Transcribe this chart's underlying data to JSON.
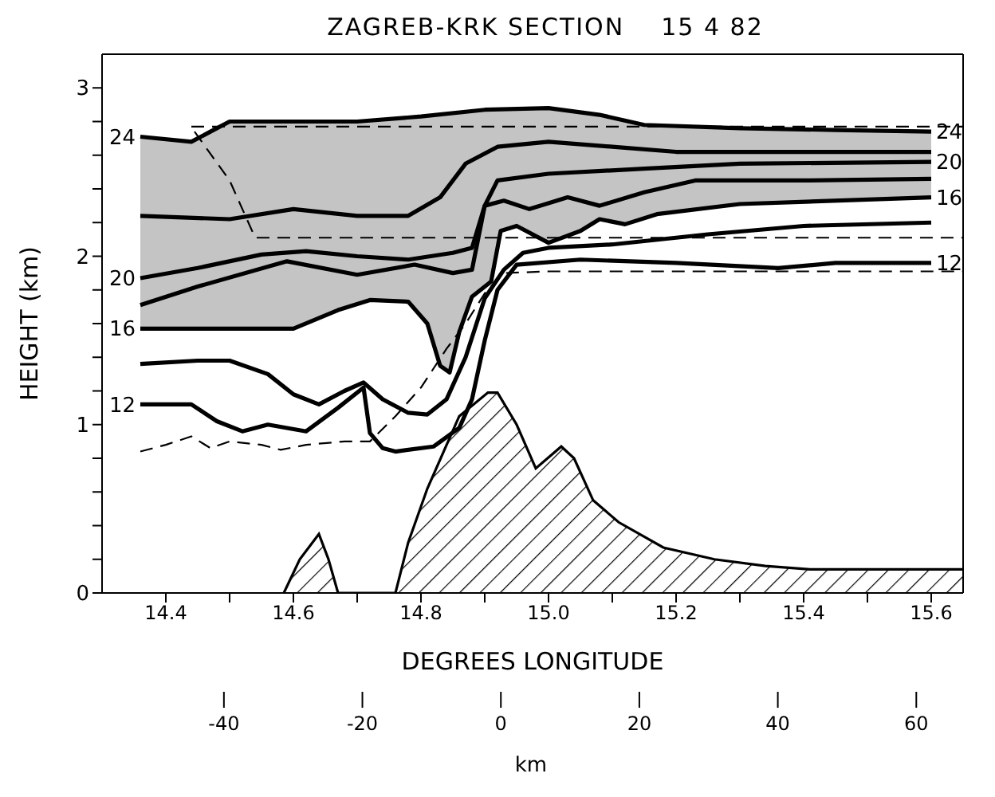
{
  "chart_data": {
    "type": "line",
    "title": "ZAGREB-KRK SECTION    15 4 82",
    "xlabel": "DEGREES LONGITUDE",
    "ylabel": "HEIGHT (km)",
    "x2label": "km",
    "xlim": [
      14.3,
      15.65
    ],
    "ylim": [
      0,
      3.2
    ],
    "xticks": [
      14.4,
      {
        "value": 14.5,
        "label": null
      },
      14.6,
      {
        "value": 14.7,
        "label": null
      },
      14.8,
      {
        "value": 14.9,
        "label": null
      },
      "15.0",
      {
        "value": 15.1,
        "label": null
      },
      15.2,
      {
        "value": 15.3,
        "label": null
      },
      15.4,
      {
        "value": 15.5,
        "label": null
      },
      15.6
    ],
    "yticks": [
      0,
      {
        "value": 0.2,
        "label": null
      },
      {
        "value": 0.4,
        "label": null
      },
      {
        "value": 0.6,
        "label": null
      },
      {
        "value": 0.8,
        "label": null
      },
      1,
      {
        "value": 1.2,
        "label": null
      },
      {
        "value": 1.4,
        "label": null
      },
      {
        "value": 1.6,
        "label": null
      },
      {
        "value": 1.8,
        "label": null
      },
      2,
      {
        "value": 2.2,
        "label": null
      },
      {
        "value": 2.4,
        "label": null
      },
      {
        "value": 2.6,
        "label": null
      },
      {
        "value": 2.8,
        "label": null
      },
      3
    ],
    "x2lim": [
      -57.6,
      66.3
    ],
    "x2ticks": [
      -40,
      -20,
      0,
      20,
      40,
      60
    ],
    "marker": "none",
    "line_style": "solid",
    "legend": "left",
    "series": [
      {
        "type": "area",
        "color": "#000000",
        "x": [
          14.585,
          14.61,
          14.64,
          14.655,
          14.67,
          14.76,
          14.78,
          14.81,
          14.86,
          14.905,
          14.92,
          14.95,
          14.98,
          15.02,
          15.04,
          15.07,
          15.11,
          15.18,
          15.26,
          15.34,
          15.41,
          15.65
        ],
        "values": [
          0,
          0.2,
          0.35,
          0.2,
          0,
          0,
          0.3,
          0.62,
          1.05,
          1.19,
          1.19,
          1.0,
          0.74,
          0.87,
          0.8,
          0.55,
          0.42,
          0.27,
          0.2,
          0.16,
          0.14,
          0.14
        ]
      },
      {
        "name": "24",
        "color": "#000000",
        "x": [
          14.36,
          14.44,
          14.47,
          14.5,
          14.6,
          14.7,
          14.8,
          14.9,
          15.0,
          15.08,
          15.15,
          15.3,
          15.45,
          15.6
        ],
        "values": [
          2.71,
          2.68,
          2.74,
          2.8,
          2.8,
          2.8,
          2.83,
          2.87,
          2.88,
          2.84,
          2.78,
          2.76,
          2.75,
          2.74
        ]
      },
      {
        "color": "#000000",
        "x": [
          14.36,
          14.5,
          14.6,
          14.7,
          14.78,
          14.83,
          14.87,
          14.92,
          15.0,
          15.1,
          15.2,
          15.4,
          15.6
        ],
        "values": [
          2.24,
          2.22,
          2.28,
          2.24,
          2.24,
          2.35,
          2.55,
          2.65,
          2.68,
          2.65,
          2.62,
          2.62,
          2.62
        ]
      },
      {
        "name": "20",
        "color": "#000000",
        "x": [
          14.36,
          14.45,
          14.55,
          14.62,
          14.7,
          14.78,
          14.85,
          14.88,
          14.9,
          14.92,
          15.0,
          15.15,
          15.3,
          15.6
        ],
        "values": [
          1.87,
          1.93,
          2.01,
          2.03,
          2.0,
          1.98,
          2.02,
          2.05,
          2.3,
          2.45,
          2.49,
          2.52,
          2.55,
          2.56
        ]
      },
      {
        "color": "#000000",
        "x": [
          14.36,
          14.45,
          14.59,
          14.7,
          14.79,
          14.85,
          14.88,
          14.9,
          14.93,
          14.97,
          15.03,
          15.08,
          15.15,
          15.23,
          15.4,
          15.6
        ],
        "values": [
          1.71,
          1.82,
          1.97,
          1.89,
          1.95,
          1.9,
          1.92,
          2.3,
          2.33,
          2.28,
          2.35,
          2.3,
          2.38,
          2.45,
          2.45,
          2.46
        ]
      },
      {
        "name": "16",
        "color": "#000000",
        "x": [
          14.36,
          14.44,
          14.47,
          14.5,
          14.6,
          14.67,
          14.72,
          14.78,
          14.81,
          14.83,
          14.845,
          14.86,
          14.88,
          14.91,
          14.925,
          14.95,
          15.0,
          15.05,
          15.08,
          15.12,
          15.17,
          15.3,
          15.6
        ],
        "values": [
          1.57,
          1.57,
          1.57,
          1.57,
          1.57,
          1.68,
          1.74,
          1.73,
          1.6,
          1.35,
          1.31,
          1.55,
          1.76,
          1.85,
          2.15,
          2.18,
          2.08,
          2.15,
          2.22,
          2.19,
          2.25,
          2.31,
          2.35
        ],
        "lower": [
          1.57,
          1.57,
          1.57,
          1.57,
          1.57,
          1.68,
          1.74,
          1.73,
          1.6,
          1.35,
          1.31,
          1.55,
          1.76,
          1.85,
          2.15,
          2.18,
          2.08,
          2.15,
          2.22,
          2.19,
          2.25,
          2.31,
          2.35
        ],
        "upper": [
          2.71,
          2.68,
          2.74,
          2.8,
          2.8,
          2.8,
          2.8,
          2.82,
          2.83,
          2.84,
          2.84,
          2.85,
          2.86,
          2.87,
          2.87,
          2.88,
          2.88,
          2.86,
          2.84,
          2.8,
          2.78,
          2.76,
          2.74
        ]
      },
      {
        "color": "#000000",
        "x": [
          14.36,
          14.45,
          14.5,
          14.56,
          14.6,
          14.64,
          14.68,
          14.71,
          14.74,
          14.78,
          14.81,
          14.84,
          14.87,
          14.9,
          14.93,
          14.96,
          15.0,
          15.1,
          15.25,
          15.4,
          15.6
        ],
        "values": [
          1.36,
          1.38,
          1.38,
          1.3,
          1.18,
          1.12,
          1.2,
          1.25,
          1.15,
          1.07,
          1.06,
          1.15,
          1.4,
          1.75,
          1.92,
          2.02,
          2.05,
          2.07,
          2.13,
          2.18,
          2.2
        ]
      },
      {
        "name": "12",
        "color": "#000000",
        "x": [
          14.36,
          14.44,
          14.48,
          14.52,
          14.56,
          14.62,
          14.67,
          14.71,
          14.72,
          14.74,
          14.76,
          14.82,
          14.86,
          14.88,
          14.9,
          14.92,
          14.95,
          15.05,
          15.2,
          15.36,
          15.45,
          15.6
        ],
        "values": [
          1.12,
          1.12,
          1.02,
          0.96,
          1.0,
          0.96,
          1.1,
          1.22,
          0.95,
          0.86,
          0.84,
          0.87,
          0.98,
          1.15,
          1.5,
          1.8,
          1.95,
          1.98,
          1.96,
          1.93,
          1.96,
          1.96
        ]
      },
      {
        "color": "#000000",
        "line_style": "dashed",
        "x": [
          14.36,
          14.4,
          14.44,
          14.47,
          14.5,
          14.55,
          14.58,
          14.62,
          14.68,
          14.72,
          14.76,
          14.8,
          14.84,
          14.87,
          14.9,
          14.93,
          15.0,
          15.65
        ],
        "values": [
          0.84,
          0.88,
          0.93,
          0.86,
          0.9,
          0.88,
          0.85,
          0.88,
          0.9,
          0.9,
          1.05,
          1.22,
          1.45,
          1.6,
          1.78,
          1.9,
          1.91,
          1.91
        ]
      },
      {
        "color": "#000000",
        "line_style": "dashed",
        "x": [
          14.44,
          15.65
        ],
        "values": [
          2.77,
          2.77
        ]
      },
      {
        "color": "#000000",
        "line_style": "dashed",
        "x": [
          14.445,
          14.5,
          14.54,
          15.65
        ],
        "values": [
          2.74,
          2.45,
          2.11,
          2.11
        ]
      }
    ]
  }
}
